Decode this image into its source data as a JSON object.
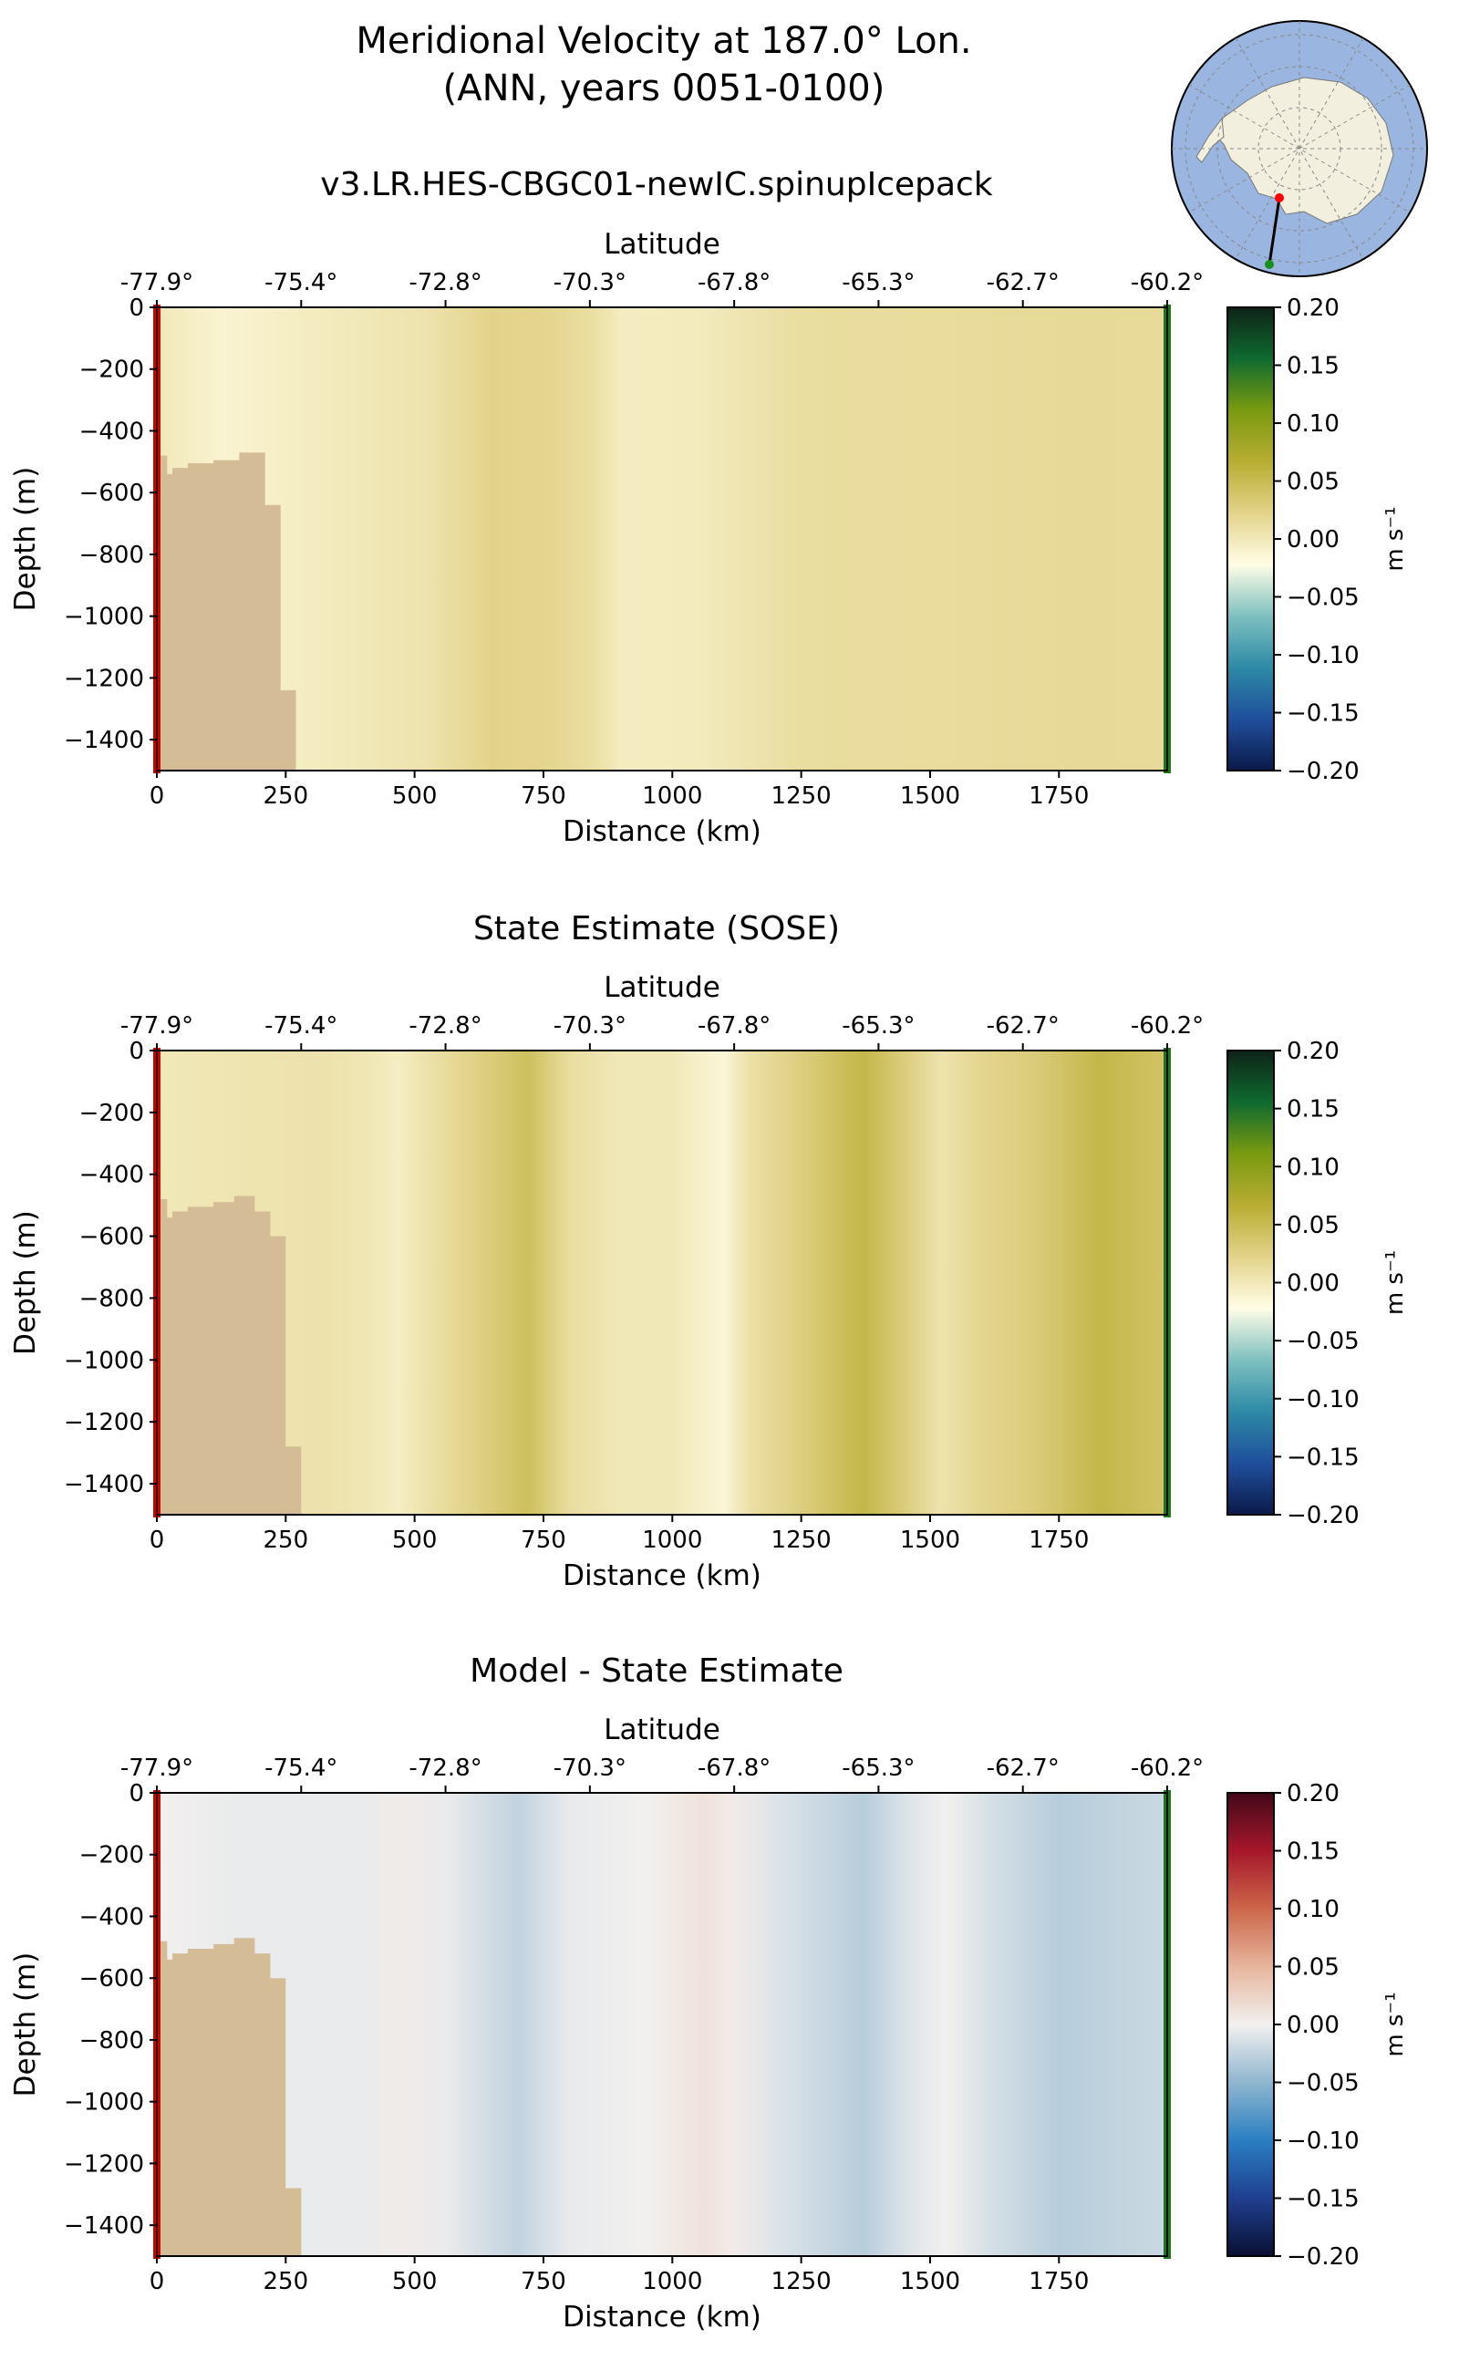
{
  "figure": {
    "title_line1": "Meridional Velocity at 187.0° Lon.",
    "title_line2": "(ANN, years 0051-0100)"
  },
  "inset_map": {
    "description_icon": "antarctica-polar-map-icon",
    "ocean_color": "#9ab6e0",
    "land_color": "#f2efdf",
    "transect_start_color": "#ff0000",
    "transect_end_color": "#1a8f1a"
  },
  "chart_data": [
    {
      "type": "heatmap",
      "title": "v3.LR.HES-CBGC01-newIC.spinupIcepack",
      "xlabel": "Distance (km)",
      "ylabel": "Depth (m)",
      "top_xlabel": "Latitude",
      "xlim": [
        0,
        1960
      ],
      "ylim": [
        -1500,
        0
      ],
      "xticks": [
        0,
        250,
        500,
        750,
        1000,
        1250,
        1500,
        1750
      ],
      "xtick_labels": [
        "0",
        "250",
        "500",
        "750",
        "1000",
        "1250",
        "1500",
        "1750"
      ],
      "yticks": [
        0,
        -200,
        -400,
        -600,
        -800,
        -1000,
        -1200,
        -1400
      ],
      "ytick_labels": [
        "0",
        "−200",
        "−400",
        "−600",
        "−800",
        "−1000",
        "−1200",
        "−1400"
      ],
      "lat_ticks_km": [
        0,
        280,
        560,
        840,
        1120,
        1400,
        1680,
        1960
      ],
      "lat_tick_labels": [
        "-77.9°",
        "-75.4°",
        "-72.8°",
        "-70.3°",
        "-67.8°",
        "-65.3°",
        "-62.7°",
        "-60.2°"
      ],
      "colorbar": {
        "label": "m s⁻¹",
        "range": [
          -0.2,
          0.2
        ],
        "ticks": [
          "0.20",
          "0.15",
          "0.10",
          "0.05",
          "0.00",
          "−0.05",
          "−0.10",
          "−0.15",
          "−0.20"
        ],
        "colormap": "diverging blue-white-olive-green",
        "colors": [
          "#0b1a4a",
          "#1f4f9c",
          "#2d8aa6",
          "#7ec0c0",
          "#fffde6",
          "#e3d38a",
          "#b8ad32",
          "#7a9a10",
          "#0f6a2f",
          "#0d2318"
        ]
      },
      "velocity_bands_km": [
        [
          0,
          0.0
        ],
        [
          130,
          -0.012
        ],
        [
          300,
          -0.004
        ],
        [
          400,
          0.0
        ],
        [
          520,
          0.005
        ],
        [
          650,
          0.022
        ],
        [
          760,
          0.02
        ],
        [
          850,
          0.01
        ],
        [
          900,
          -0.004
        ],
        [
          1050,
          -0.003
        ],
        [
          1150,
          0.004
        ],
        [
          1250,
          0.012
        ],
        [
          1500,
          0.013
        ],
        [
          1800,
          0.016
        ],
        [
          1960,
          0.015
        ]
      ],
      "bathymetry_km_m": [
        [
          0,
          -480
        ],
        [
          20,
          -480
        ],
        [
          20,
          -540
        ],
        [
          30,
          -540
        ],
        [
          30,
          -520
        ],
        [
          60,
          -520
        ],
        [
          60,
          -505
        ],
        [
          110,
          -505
        ],
        [
          110,
          -495
        ],
        [
          160,
          -495
        ],
        [
          160,
          -470
        ],
        [
          210,
          -470
        ],
        [
          210,
          -640
        ],
        [
          240,
          -640
        ],
        [
          240,
          -1240
        ],
        [
          270,
          -1240
        ],
        [
          270,
          -1500
        ]
      ]
    },
    {
      "type": "heatmap",
      "title": "State Estimate (SOSE)",
      "xlabel": "Distance (km)",
      "ylabel": "Depth (m)",
      "top_xlabel": "Latitude",
      "xlim": [
        0,
        1960
      ],
      "ylim": [
        -1500,
        0
      ],
      "xticks": [
        0,
        250,
        500,
        750,
        1000,
        1250,
        1500,
        1750
      ],
      "xtick_labels": [
        "0",
        "250",
        "500",
        "750",
        "1000",
        "1250",
        "1500",
        "1750"
      ],
      "yticks": [
        0,
        -200,
        -400,
        -600,
        -800,
        -1000,
        -1200,
        -1400
      ],
      "ytick_labels": [
        "0",
        "−200",
        "−400",
        "−600",
        "−800",
        "−1000",
        "−1200",
        "−1400"
      ],
      "lat_ticks_km": [
        0,
        280,
        560,
        840,
        1120,
        1400,
        1680,
        1960
      ],
      "lat_tick_labels": [
        "-77.9°",
        "-75.4°",
        "-72.8°",
        "-70.3°",
        "-67.8°",
        "-65.3°",
        "-62.7°",
        "-60.2°"
      ],
      "colorbar": {
        "label": "m s⁻¹",
        "range": [
          -0.2,
          0.2
        ],
        "ticks": [
          "0.20",
          "0.15",
          "0.10",
          "0.05",
          "0.00",
          "−0.05",
          "−0.10",
          "−0.15",
          "−0.20"
        ],
        "colormap": "diverging blue-white-olive-green",
        "colors": [
          "#0b1a4a",
          "#1f4f9c",
          "#2d8aa6",
          "#7ec0c0",
          "#fffde6",
          "#e3d38a",
          "#b8ad32",
          "#7a9a10",
          "#0f6a2f",
          "#0d2318"
        ]
      },
      "velocity_bands_km": [
        [
          0,
          0.0
        ],
        [
          200,
          0.004
        ],
        [
          330,
          0.006
        ],
        [
          420,
          0.0
        ],
        [
          470,
          -0.006
        ],
        [
          520,
          0.006
        ],
        [
          620,
          0.025
        ],
        [
          720,
          0.045
        ],
        [
          800,
          0.012
        ],
        [
          900,
          0.0
        ],
        [
          1000,
          0.0
        ],
        [
          1100,
          -0.015
        ],
        [
          1150,
          0.008
        ],
        [
          1260,
          0.03
        ],
        [
          1370,
          0.055
        ],
        [
          1450,
          0.03
        ],
        [
          1520,
          0.005
        ],
        [
          1600,
          0.02
        ],
        [
          1700,
          0.03
        ],
        [
          1830,
          0.055
        ],
        [
          1960,
          0.04
        ]
      ],
      "bathymetry_km_m": [
        [
          0,
          -480
        ],
        [
          20,
          -480
        ],
        [
          20,
          -540
        ],
        [
          30,
          -540
        ],
        [
          30,
          -520
        ],
        [
          60,
          -520
        ],
        [
          60,
          -505
        ],
        [
          110,
          -505
        ],
        [
          110,
          -490
        ],
        [
          150,
          -490
        ],
        [
          150,
          -470
        ],
        [
          190,
          -470
        ],
        [
          190,
          -520
        ],
        [
          220,
          -520
        ],
        [
          220,
          -600
        ],
        [
          250,
          -600
        ],
        [
          250,
          -1280
        ],
        [
          280,
          -1280
        ],
        [
          280,
          -1500
        ]
      ]
    },
    {
      "type": "heatmap",
      "title": "Model - State Estimate",
      "xlabel": "Distance (km)",
      "ylabel": "Depth (m)",
      "top_xlabel": "Latitude",
      "xlim": [
        0,
        1960
      ],
      "ylim": [
        -1500,
        0
      ],
      "xticks": [
        0,
        250,
        500,
        750,
        1000,
        1250,
        1500,
        1750
      ],
      "xtick_labels": [
        "0",
        "250",
        "500",
        "750",
        "1000",
        "1250",
        "1500",
        "1750"
      ],
      "yticks": [
        0,
        -200,
        -400,
        -600,
        -800,
        -1000,
        -1200,
        -1400
      ],
      "ytick_labels": [
        "0",
        "−200",
        "−400",
        "−600",
        "−800",
        "−1000",
        "−1200",
        "−1400"
      ],
      "lat_ticks_km": [
        0,
        280,
        560,
        840,
        1120,
        1400,
        1680,
        1960
      ],
      "lat_tick_labels": [
        "-77.9°",
        "-75.4°",
        "-72.8°",
        "-70.3°",
        "-67.8°",
        "-65.3°",
        "-62.7°",
        "-60.2°"
      ],
      "colorbar": {
        "label": "m s⁻¹",
        "range": [
          -0.2,
          0.2
        ],
        "ticks": [
          "0.20",
          "0.15",
          "0.10",
          "0.05",
          "0.00",
          "−0.05",
          "−0.10",
          "−0.15",
          "−0.20"
        ],
        "colormap": "diverging blue-white-red",
        "colors": [
          "#0a1033",
          "#1f3f8f",
          "#2a7fc2",
          "#8fb6cf",
          "#f2f0ef",
          "#e6b59c",
          "#cc6649",
          "#a6172b",
          "#42081a"
        ]
      },
      "velocity_bands_km": [
        [
          0,
          0.0
        ],
        [
          150,
          -0.004
        ],
        [
          400,
          -0.004
        ],
        [
          470,
          0.004
        ],
        [
          560,
          -0.004
        ],
        [
          700,
          -0.025
        ],
        [
          800,
          -0.005
        ],
        [
          950,
          0.0
        ],
        [
          1060,
          0.012
        ],
        [
          1120,
          0.004
        ],
        [
          1200,
          -0.01
        ],
        [
          1370,
          -0.03
        ],
        [
          1460,
          -0.01
        ],
        [
          1530,
          0.0
        ],
        [
          1620,
          -0.015
        ],
        [
          1750,
          -0.03
        ],
        [
          1960,
          -0.02
        ]
      ],
      "bathymetry_km_m": [
        [
          0,
          -480
        ],
        [
          20,
          -480
        ],
        [
          20,
          -540
        ],
        [
          30,
          -540
        ],
        [
          30,
          -520
        ],
        [
          60,
          -520
        ],
        [
          60,
          -505
        ],
        [
          110,
          -505
        ],
        [
          110,
          -490
        ],
        [
          150,
          -490
        ],
        [
          150,
          -470
        ],
        [
          190,
          -470
        ],
        [
          190,
          -520
        ],
        [
          220,
          -520
        ],
        [
          220,
          -600
        ],
        [
          250,
          -600
        ],
        [
          250,
          -1280
        ],
        [
          280,
          -1280
        ],
        [
          280,
          -1500
        ]
      ]
    }
  ]
}
